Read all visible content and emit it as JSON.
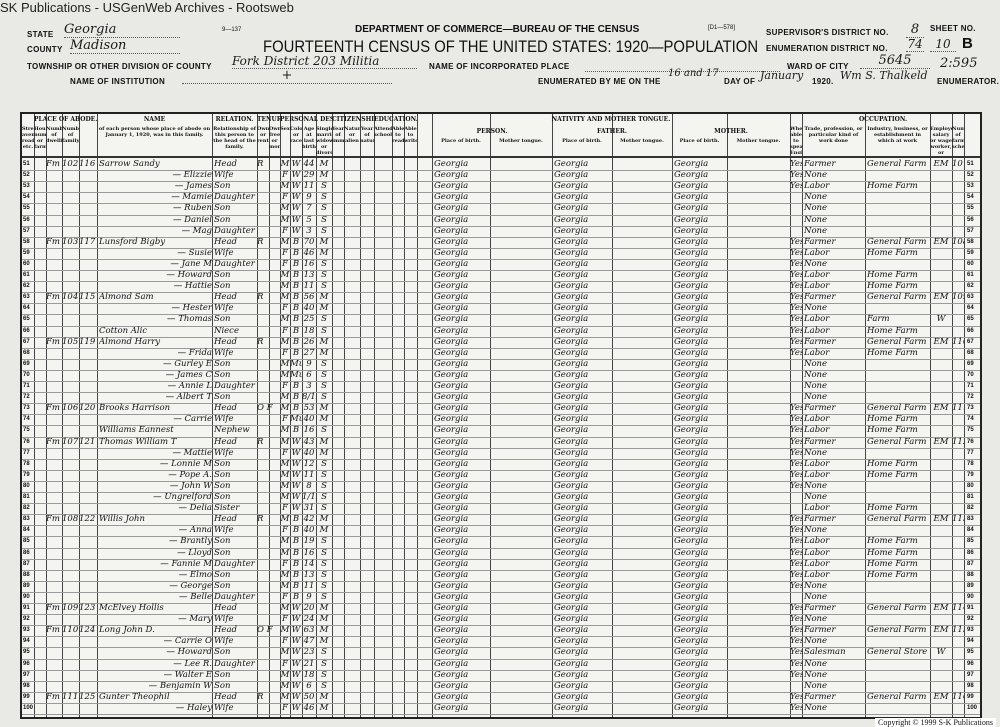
{
  "window": {
    "title": "SK Publications - USGenWeb Archives - Rootsweb"
  },
  "form": {
    "form_number": "9—137",
    "form_code": "[D1—578]",
    "department": "DEPARTMENT OF COMMERCE—BUREAU OF THE CENSUS",
    "title": "FOURTEENTH CENSUS OF THE UNITED STATES: 1920—POPULATION",
    "state_label": "STATE",
    "state": "Georgia",
    "county_label": "COUNTY",
    "county": "Madison",
    "township_label": "TOWNSHIP OR OTHER DIVISION OF COUNTY",
    "township": "Fork District 203 Militia",
    "institution_label": "NAME OF INSTITUTION",
    "institution": "+",
    "incorporated_label": "NAME OF INCORPORATED PLACE",
    "ward_label": "WARD OF CITY",
    "ward": "5645",
    "stamp_number": "2:595",
    "supervisor_label": "SUPERVISOR'S DISTRICT NO.",
    "supervisor": "8",
    "enumeration_label": "ENUMERATION DISTRICT NO.",
    "enumeration": "74",
    "sheet_label": "SHEET NO.",
    "sheet": "10",
    "sheet_side": "B",
    "enumerated_label": "ENUMERATED BY ME ON THE",
    "enumerated_day": "16 and 17",
    "day_of_label": "DAY OF",
    "month": "January",
    "year": "1920.",
    "enumerator": "Wm S. Thalkeld",
    "enumerator_label": "ENUMERATOR."
  },
  "groups": {
    "abode": "PLACE OF ABODE.",
    "name": "NAME",
    "relation": "RELATION.",
    "tenure": "TENURE.",
    "personal": "PERSONAL DESCRIPTION.",
    "citizenship": "CITIZENSHIP.",
    "education": "EDUCATION.",
    "nativity": "NATIVITY AND MOTHER TONGUE.",
    "person": "PERSON.",
    "father": "FATHER.",
    "mother": "MOTHER.",
    "occupation": "OCCUPATION."
  },
  "columns": [
    "Street, avenue, road, etc.",
    "House number or farm",
    "Number of dwelling",
    "Number of family",
    "of each person whose place of abode on January 1, 1920, was in this family.",
    "Relationship of this person to the head of the family.",
    "Owned or rented",
    "Owned free or mortgaged",
    "Sex",
    "Color or race",
    "Age at last birthday",
    "Single, married, widowed, or divorced",
    "Year of immigration",
    "Naturalized or alien",
    "Year of naturalization",
    "Attended school",
    "Able to read",
    "Able to write",
    "Place of birth.",
    "Mother tongue.",
    "Place of birth.",
    "Mother tongue.",
    "Place of birth.",
    "Mother tongue.",
    "Whether able to speak English.",
    "Trade, profession, or particular kind of work done",
    "Industry, business, or establishment in which at work",
    "Employer, salary or wage worker, or working on own account",
    "Number of farm schedule"
  ],
  "rows": [
    [
      "51",
      "Fm",
      "102",
      "116",
      "Sarrow Sandy",
      "Head",
      "R",
      "M",
      "W",
      "44",
      "M",
      "Georgia",
      "Georgia",
      "Georgia",
      "Yes",
      "Farmer",
      "General Farm",
      "EM",
      "107"
    ],
    [
      "52",
      "",
      "",
      "",
      "— Elizzie",
      "Wife",
      "",
      "F",
      "W",
      "29",
      "M",
      "Georgia",
      "Georgia",
      "Georgia",
      "Yes",
      "None",
      "",
      "",
      ""
    ],
    [
      "53",
      "",
      "",
      "",
      "— James",
      "Son",
      "",
      "M",
      "W",
      "11",
      "S",
      "Georgia",
      "Georgia",
      "Georgia",
      "Yes",
      "Labor",
      "Home Farm",
      "",
      ""
    ],
    [
      "54",
      "",
      "",
      "",
      "— Mamie",
      "Daughter",
      "",
      "F",
      "W",
      "9",
      "S",
      "Georgia",
      "Georgia",
      "Georgia",
      "",
      "None",
      "",
      "",
      ""
    ],
    [
      "55",
      "",
      "",
      "",
      "— Ruben",
      "Son",
      "",
      "M",
      "W",
      "7",
      "S",
      "Georgia",
      "Georgia",
      "Georgia",
      "",
      "None",
      "",
      "",
      ""
    ],
    [
      "56",
      "",
      "",
      "",
      "— Daniel",
      "Son",
      "",
      "M",
      "W",
      "5",
      "S",
      "Georgia",
      "Georgia",
      "Georgia",
      "",
      "None",
      "",
      "",
      ""
    ],
    [
      "57",
      "",
      "",
      "",
      "— Mag",
      "Daughter",
      "",
      "F",
      "W",
      "3",
      "S",
      "Georgia",
      "Georgia",
      "Georgia",
      "",
      "None",
      "",
      "",
      ""
    ],
    [
      "58",
      "Fm",
      "103",
      "117",
      "Lunsford Bigby",
      "Head",
      "R",
      "M",
      "B",
      "70",
      "M",
      "Georgia",
      "Georgia",
      "Georgia",
      "Yes",
      "Farmer",
      "General Farm",
      "EM",
      "108"
    ],
    [
      "59",
      "",
      "",
      "",
      "— Susie",
      "Wife",
      "",
      "F",
      "B",
      "46",
      "M",
      "Georgia",
      "Georgia",
      "Georgia",
      "Yes",
      "Labor",
      "Home Farm",
      "",
      ""
    ],
    [
      "60",
      "",
      "",
      "",
      "— Jane M",
      "Daughter",
      "",
      "F",
      "B",
      "16",
      "S",
      "Georgia",
      "Georgia",
      "Georgia",
      "Yes",
      "None",
      "",
      "",
      ""
    ],
    [
      "61",
      "",
      "",
      "",
      "— Howard",
      "Son",
      "",
      "M",
      "B",
      "13",
      "S",
      "Georgia",
      "Georgia",
      "Georgia",
      "Yes",
      "Labor",
      "Home Farm",
      "",
      ""
    ],
    [
      "62",
      "",
      "",
      "",
      "— Hattie",
      "Son",
      "",
      "M",
      "B",
      "11",
      "S",
      "Georgia",
      "Georgia",
      "Georgia",
      "Yes",
      "Labor",
      "Home Farm",
      "",
      ""
    ],
    [
      "63",
      "Fm",
      "104",
      "115",
      "Almond Sam",
      "Head",
      "R",
      "M",
      "B",
      "56",
      "M",
      "Georgia",
      "Georgia",
      "Georgia",
      "Yes",
      "Farmer",
      "General Farm",
      "EM",
      "109"
    ],
    [
      "64",
      "",
      "",
      "",
      "— Hester",
      "Wife",
      "",
      "F",
      "B",
      "40",
      "M",
      "Georgia",
      "Georgia",
      "Georgia",
      "Yes",
      "None",
      "",
      "",
      ""
    ],
    [
      "65",
      "",
      "",
      "",
      "— Thomas",
      "Son",
      "",
      "M",
      "B",
      "25",
      "S",
      "Georgia",
      "Georgia",
      "Georgia",
      "Yes",
      "Labor",
      "Farm",
      "W",
      ""
    ],
    [
      "66",
      "",
      "",
      "",
      "Cotton Alic",
      "Niece",
      "",
      "F",
      "B",
      "18",
      "S",
      "Georgia",
      "Georgia",
      "Georgia",
      "Yes",
      "Labor",
      "Home Farm",
      "",
      ""
    ],
    [
      "67",
      "Fm",
      "105",
      "119",
      "Almond Harry",
      "Head",
      "R",
      "M",
      "B",
      "26",
      "M",
      "Georgia",
      "Georgia",
      "Georgia",
      "Yes",
      "Farmer",
      "General Farm",
      "EM",
      "110"
    ],
    [
      "68",
      "",
      "",
      "",
      "— Frida",
      "Wife",
      "",
      "F",
      "B",
      "27",
      "M",
      "Georgia",
      "Georgia",
      "Georgia",
      "Yes",
      "Labor",
      "Home Farm",
      "",
      ""
    ],
    [
      "69",
      "",
      "",
      "",
      "— Gurley E",
      "Son",
      "",
      "M",
      "Mu",
      "9",
      "S",
      "Georgia",
      "Georgia",
      "Georgia",
      "",
      "None",
      "",
      "",
      ""
    ],
    [
      "70",
      "",
      "",
      "",
      "— James C",
      "Son",
      "",
      "M",
      "Mu",
      "6",
      "S",
      "Georgia",
      "Georgia",
      "Georgia",
      "",
      "None",
      "",
      "",
      ""
    ],
    [
      "71",
      "",
      "",
      "",
      "— Annie L",
      "Daughter",
      "",
      "F",
      "B",
      "3",
      "S",
      "Georgia",
      "Georgia",
      "Georgia",
      "",
      "None",
      "",
      "",
      ""
    ],
    [
      "72",
      "",
      "",
      "",
      "— Albert T",
      "Son",
      "",
      "M",
      "B",
      "8/12",
      "S",
      "Georgia",
      "Georgia",
      "Georgia",
      "",
      "None",
      "",
      "",
      ""
    ],
    [
      "73",
      "Fm",
      "106",
      "120",
      "Brooks Harrison",
      "Head",
      "O F",
      "M",
      "B",
      "53",
      "M",
      "Georgia",
      "Georgia",
      "Georgia",
      "Yes",
      "Farmer",
      "General Farm",
      "EM",
      "111"
    ],
    [
      "74",
      "",
      "",
      "",
      "— Carrie",
      "Wife",
      "",
      "F",
      "Mu",
      "40",
      "M",
      "Georgia",
      "Georgia",
      "Georgia",
      "Yes",
      "Labor",
      "Home Farm",
      "",
      ""
    ],
    [
      "75",
      "",
      "",
      "",
      "Williams Eannest",
      "Nephew",
      "",
      "M",
      "B",
      "16",
      "S",
      "Georgia",
      "Georgia",
      "Georgia",
      "Yes",
      "Labor",
      "Home Farm",
      "",
      ""
    ],
    [
      "76",
      "Fm",
      "107",
      "121",
      "Thomas William T",
      "Head",
      "R",
      "M",
      "W",
      "43",
      "M",
      "Georgia",
      "Georgia",
      "Georgia",
      "Yes",
      "Farmer",
      "General Farm",
      "EM",
      "112"
    ],
    [
      "77",
      "",
      "",
      "",
      "— Mattie",
      "Wife",
      "",
      "F",
      "W",
      "40",
      "M",
      "Georgia",
      "Georgia",
      "Georgia",
      "Yes",
      "None",
      "",
      "",
      ""
    ],
    [
      "78",
      "",
      "",
      "",
      "— Lonnie M",
      "Son",
      "",
      "M",
      "W",
      "12",
      "S",
      "Georgia",
      "Georgia",
      "Georgia",
      "Yes",
      "Labor",
      "Home Farm",
      "",
      ""
    ],
    [
      "79",
      "",
      "",
      "",
      "— Pope A.",
      "Son",
      "",
      "M",
      "W",
      "11",
      "S",
      "Georgia",
      "Georgia",
      "Georgia",
      "Yes",
      "Labor",
      "Home Farm",
      "",
      ""
    ],
    [
      "80",
      "",
      "",
      "",
      "— John W",
      "Son",
      "",
      "M",
      "W",
      "8",
      "S",
      "Georgia",
      "Georgia",
      "Georgia",
      "Yes",
      "None",
      "",
      "",
      ""
    ],
    [
      "81",
      "",
      "",
      "",
      "— Ungrelford",
      "Son",
      "",
      "M",
      "W",
      "1/12",
      "S",
      "Georgia",
      "Georgia",
      "Georgia",
      "",
      "None",
      "",
      "",
      ""
    ],
    [
      "82",
      "",
      "",
      "",
      "— Delia",
      "Sister",
      "",
      "F",
      "W",
      "31",
      "S",
      "Georgia",
      "Georgia",
      "Georgia",
      "",
      "Labor",
      "Home Farm",
      "",
      ""
    ],
    [
      "83",
      "Fm",
      "108",
      "122",
      "Willis John",
      "Head",
      "R",
      "M",
      "B",
      "42",
      "M",
      "Georgia",
      "Georgia",
      "Georgia",
      "Yes",
      "Farmer",
      "General Farm",
      "EM",
      "113"
    ],
    [
      "84",
      "",
      "",
      "",
      "— Anna",
      "Wife",
      "",
      "F",
      "B",
      "40",
      "M",
      "Georgia",
      "Georgia",
      "Georgia",
      "Yes",
      "None",
      "",
      "",
      ""
    ],
    [
      "85",
      "",
      "",
      "",
      "— Brantly",
      "Son",
      "",
      "M",
      "B",
      "19",
      "S",
      "Georgia",
      "Georgia",
      "Georgia",
      "Yes",
      "Labor",
      "Home Farm",
      "",
      ""
    ],
    [
      "86",
      "",
      "",
      "",
      "— Lloyd",
      "Son",
      "",
      "M",
      "B",
      "16",
      "S",
      "Georgia",
      "Georgia",
      "Georgia",
      "Yes",
      "Labor",
      "Home Farm",
      "",
      ""
    ],
    [
      "87",
      "",
      "",
      "",
      "— Fannie M",
      "Daughter",
      "",
      "F",
      "B",
      "14",
      "S",
      "Georgia",
      "Georgia",
      "Georgia",
      "Yes",
      "Labor",
      "Home Farm",
      "",
      ""
    ],
    [
      "88",
      "",
      "",
      "",
      "— Elmo",
      "Son",
      "",
      "M",
      "B",
      "13",
      "S",
      "Georgia",
      "Georgia",
      "Georgia",
      "Yes",
      "Labor",
      "Home Farm",
      "",
      ""
    ],
    [
      "89",
      "",
      "",
      "",
      "— George",
      "Son",
      "",
      "M",
      "B",
      "11",
      "S",
      "Georgia",
      "Georgia",
      "Georgia",
      "Yes",
      "None",
      "",
      "",
      ""
    ],
    [
      "90",
      "",
      "",
      "",
      "— Belle",
      "Daughter",
      "",
      "F",
      "B",
      "9",
      "S",
      "Georgia",
      "Georgia",
      "Georgia",
      "",
      "None",
      "",
      "",
      ""
    ],
    [
      "91",
      "Fm",
      "109",
      "123",
      "McElvey Hollis",
      "Head",
      "",
      "M",
      "W",
      "20",
      "M",
      "Georgia",
      "Georgia",
      "Georgia",
      "Yes",
      "Farmer",
      "General Farm",
      "EM",
      "114"
    ],
    [
      "92",
      "",
      "",
      "",
      "— Mary",
      "Wife",
      "",
      "F",
      "W",
      "24",
      "M",
      "Georgia",
      "Georgia",
      "Georgia",
      "Yes",
      "None",
      "",
      "",
      ""
    ],
    [
      "93",
      "Fm",
      "110",
      "124",
      "Long John D.",
      "Head",
      "O F",
      "M",
      "W",
      "63",
      "M",
      "Georgia",
      "Georgia",
      "Georgia",
      "Yes",
      "Farmer",
      "General Farm",
      "EM",
      "115"
    ],
    [
      "94",
      "",
      "",
      "",
      "— Carrie O",
      "Wife",
      "",
      "F",
      "W",
      "47",
      "M",
      "Georgia",
      "Georgia",
      "Georgia",
      "Yes",
      "None",
      "",
      "",
      ""
    ],
    [
      "95",
      "",
      "",
      "",
      "— Howard",
      "Son",
      "",
      "M",
      "W",
      "23",
      "S",
      "Georgia",
      "Georgia",
      "Georgia",
      "Yes",
      "Salesman",
      "General Store",
      "W",
      ""
    ],
    [
      "96",
      "",
      "",
      "",
      "— Lee R.",
      "Daughter",
      "",
      "F",
      "W",
      "21",
      "S",
      "Georgia",
      "Georgia",
      "Georgia",
      "Yes",
      "None",
      "",
      "",
      ""
    ],
    [
      "97",
      "",
      "",
      "",
      "— Walter E",
      "Son",
      "",
      "M",
      "W",
      "18",
      "S",
      "Georgia",
      "Georgia",
      "Georgia",
      "Yes",
      "None",
      "",
      "",
      ""
    ],
    [
      "98",
      "",
      "",
      "",
      "— Benjamin W",
      "Son",
      "",
      "M",
      "W",
      "6",
      "S",
      "Georgia",
      "Georgia",
      "Georgia",
      "",
      "None",
      "",
      "",
      ""
    ],
    [
      "99",
      "Fm",
      "111",
      "125",
      "Gunter Theophil",
      "Head",
      "R",
      "M",
      "W",
      "50",
      "M",
      "Georgia",
      "Georgia",
      "Georgia",
      "Yes",
      "Farmer",
      "General Farm",
      "EM",
      "116"
    ],
    [
      "100",
      "",
      "",
      "",
      "— Haley",
      "Wife",
      "",
      "F",
      "W",
      "46",
      "M",
      "Georgia",
      "Georgia",
      "Georgia",
      "Yes",
      "None",
      "",
      "",
      ""
    ]
  ],
  "copyright": "Copyright © 1999 S-K Publications"
}
